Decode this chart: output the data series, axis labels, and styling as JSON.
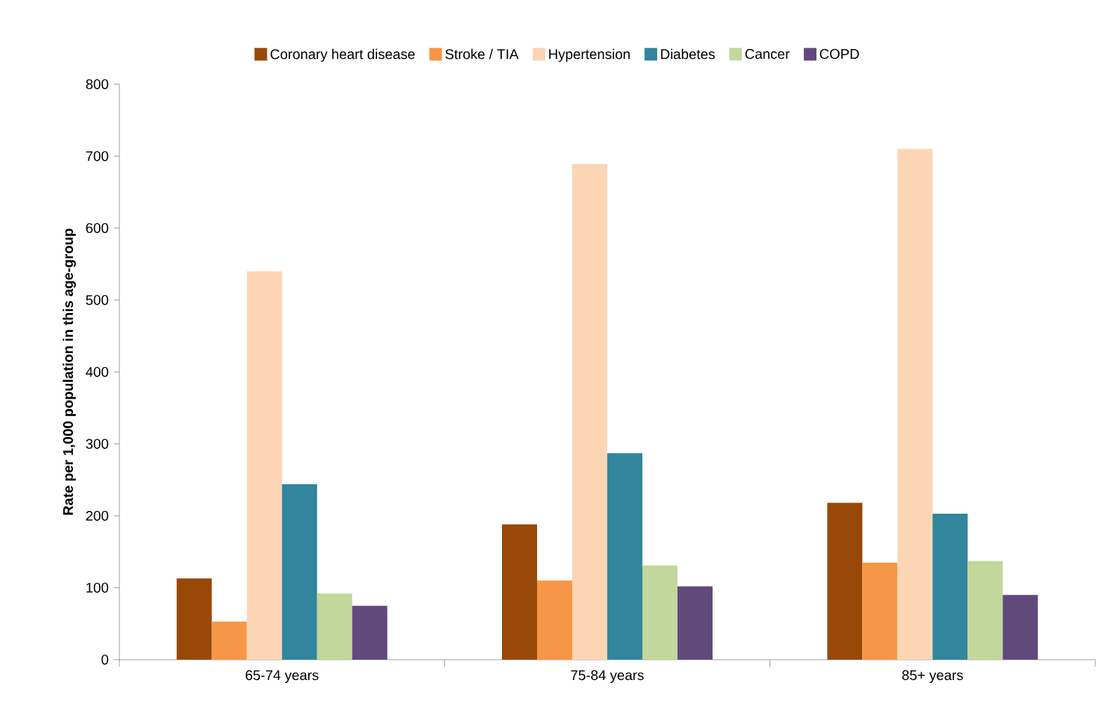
{
  "chart_data": {
    "type": "bar",
    "ylabel": "Rate per 1,000 population in this age-group",
    "categories": [
      "65-74 years",
      "75-84 years",
      "85+ years"
    ],
    "series": [
      {
        "name": "Coronary heart disease",
        "color": "#984807",
        "values": [
          113,
          188,
          218
        ]
      },
      {
        "name": "Stroke / TIA",
        "color": "#f79646",
        "values": [
          53,
          110,
          135
        ]
      },
      {
        "name": "Hypertension",
        "color": "#fcd5b5",
        "values": [
          540,
          689,
          710
        ]
      },
      {
        "name": "Diabetes",
        "color": "#31859c",
        "values": [
          244,
          287,
          203
        ]
      },
      {
        "name": "Cancer",
        "color": "#c3d69b",
        "values": [
          92,
          131,
          137
        ]
      },
      {
        "name": "COPD",
        "color": "#604a7b",
        "values": [
          75,
          102,
          90
        ]
      }
    ],
    "ylim": [
      0,
      800
    ],
    "yticks": [
      0,
      100,
      200,
      300,
      400,
      500,
      600,
      700,
      800
    ],
    "grid": false,
    "legend": "top"
  }
}
